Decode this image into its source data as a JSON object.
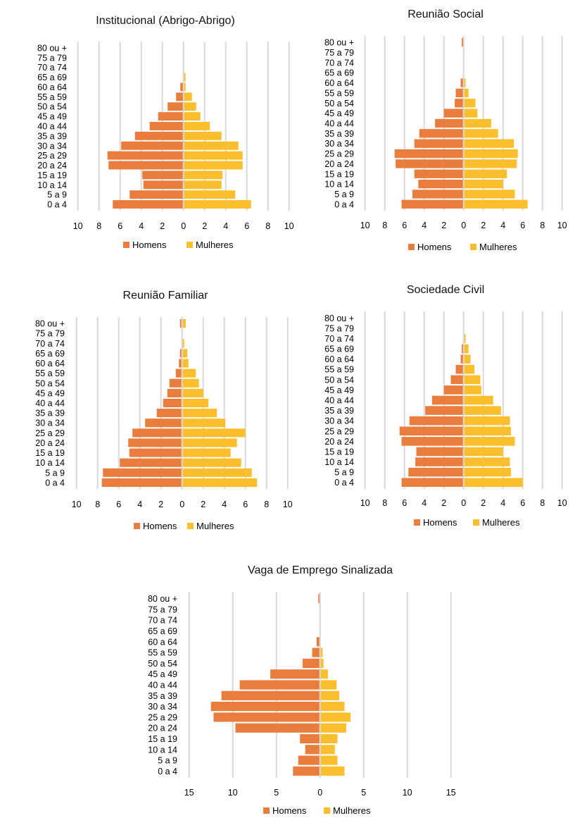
{
  "chart_data": [
    {
      "type": "bar",
      "orientation": "horizontal-population-pyramid",
      "title": "Institucional (Abrigo-Abrigo)",
      "categories": [
        "0 a 4",
        "5 a 9",
        "10 a 14",
        "15 a 19",
        "20 a 24",
        "25 a 29",
        "30 a 34",
        "35 a 39",
        "40 a 44",
        "45 a 49",
        "50 a 54",
        "55 a 59",
        "60 a 64",
        "65 a 69",
        "70 a 74",
        "75 a 79",
        "80 ou +"
      ],
      "series": [
        {
          "name": "Homens",
          "color": "#E97D3D",
          "values": [
            6.7,
            5.1,
            3.8,
            3.9,
            7.1,
            7.2,
            5.9,
            4.6,
            3.2,
            2.4,
            1.5,
            0.7,
            0.3,
            0,
            0,
            0,
            0
          ]
        },
        {
          "name": "Mulheres",
          "color": "#FBBF2D",
          "values": [
            6.4,
            4.9,
            3.6,
            3.7,
            5.6,
            5.6,
            5.2,
            3.6,
            2.5,
            1.6,
            1.2,
            0.8,
            0.2,
            0.2,
            0,
            0,
            0
          ]
        }
      ],
      "xticks": [
        "10",
        "8",
        "6",
        "4",
        "2",
        "0",
        "2",
        "4",
        "6",
        "8",
        "10"
      ],
      "xlim": [
        -10,
        10
      ],
      "grid": true,
      "legend": "bottom"
    },
    {
      "type": "bar",
      "orientation": "horizontal-population-pyramid",
      "title": "Reunião Social",
      "categories": [
        "0 a 4",
        "5 a 9",
        "10 a 14",
        "15 a 19",
        "20 a 24",
        "25 a 29",
        "30 a 34",
        "35 a 39",
        "40 a 44",
        "45 a 49",
        "50 a 54",
        "55 a 59",
        "60 a 64",
        "65 a 69",
        "70 a 74",
        "75 a 79",
        "80 ou +"
      ],
      "series": [
        {
          "name": "Homens",
          "color": "#E97D3D",
          "values": [
            6.3,
            5.2,
            4.6,
            5.0,
            6.9,
            7.0,
            5.0,
            4.5,
            2.9,
            2.0,
            0.9,
            0.8,
            0.3,
            0,
            0,
            0,
            0.2
          ]
        },
        {
          "name": "Mulheres",
          "color": "#FBBF2D",
          "values": [
            6.5,
            5.2,
            4.0,
            4.4,
            5.4,
            5.5,
            5.1,
            3.5,
            2.8,
            1.4,
            1.2,
            0.5,
            0.2,
            0,
            0,
            0,
            0
          ]
        }
      ],
      "xticks": [
        "10",
        "8",
        "6",
        "4",
        "2",
        "0",
        "2",
        "4",
        "6",
        "8",
        "10"
      ],
      "xlim": [
        -10,
        10
      ],
      "grid": true,
      "legend": "bottom"
    },
    {
      "type": "bar",
      "orientation": "horizontal-population-pyramid",
      "title": "Reunião Familiar",
      "categories": [
        "0 a 4",
        "5 a 9",
        "10 a 14",
        "15 a 19",
        "20 a 24",
        "25 a 29",
        "30 a 34",
        "35 a 39",
        "40 a 44",
        "45 a 49",
        "50 a 54",
        "55 a 59",
        "60 a 64",
        "65 a 69",
        "70 a 74",
        "75 a 79",
        "80 ou +"
      ],
      "series": [
        {
          "name": "Homens",
          "color": "#E97D3D",
          "values": [
            7.6,
            7.5,
            5.9,
            5.0,
            5.1,
            4.7,
            3.5,
            2.4,
            1.8,
            1.4,
            1.2,
            0.6,
            0.3,
            0.2,
            0,
            0,
            0.2
          ]
        },
        {
          "name": "Mulheres",
          "color": "#FBBF2D",
          "values": [
            7.1,
            6.6,
            5.6,
            4.6,
            5.2,
            6.0,
            4.1,
            3.3,
            2.5,
            2.0,
            1.6,
            1.3,
            0.6,
            0.5,
            0.2,
            0,
            0.35
          ]
        }
      ],
      "xticks": [
        "10",
        "8",
        "6",
        "4",
        "2",
        "0",
        "2",
        "4",
        "6",
        "8",
        "10"
      ],
      "xlim": [
        -10,
        10
      ],
      "grid": true,
      "legend": "bottom"
    },
    {
      "type": "bar",
      "orientation": "horizontal-population-pyramid",
      "title": "Sociedade Civil",
      "categories": [
        "0 a 4",
        "5 a 9",
        "10 a 14",
        "15 a 19",
        "20 a 24",
        "25 a 29",
        "30 a 34",
        "35 a 39",
        "40 a 44",
        "45 a 49",
        "50 a 54",
        "55 a 59",
        "60 a 64",
        "65 a 69",
        "70 a 74",
        "75 a 79",
        "80 ou +"
      ],
      "series": [
        {
          "name": "Homens",
          "color": "#E97D3D",
          "values": [
            6.3,
            5.6,
            4.9,
            4.8,
            6.3,
            6.5,
            5.5,
            3.9,
            3.2,
            2.0,
            1.3,
            0.8,
            0.3,
            0.2,
            0,
            0,
            0
          ]
        },
        {
          "name": "Mulheres",
          "color": "#FBBF2D",
          "values": [
            6.0,
            4.8,
            4.7,
            4.0,
            5.2,
            4.8,
            4.7,
            3.8,
            3.0,
            1.8,
            1.7,
            1.1,
            0.7,
            0.5,
            0.2,
            0,
            0
          ]
        }
      ],
      "xticks": [
        "10",
        "8",
        "6",
        "4",
        "2",
        "0",
        "2",
        "4",
        "6",
        "8",
        "10"
      ],
      "xlim": [
        -10,
        10
      ],
      "grid": true,
      "legend": "bottom"
    },
    {
      "type": "bar",
      "orientation": "horizontal-population-pyramid",
      "title": "Vaga de Emprego Sinalizada",
      "categories": [
        "0 a 4",
        "5 a 9",
        "10 a 14",
        "15 a 19",
        "20 a 24",
        "25 a 29",
        "30 a 34",
        "35 a 39",
        "40 a 44",
        "45 a 49",
        "50 a 54",
        "55 a 59",
        "60 a 64",
        "65 a 69",
        "70 a 74",
        "75 a 79",
        "80 ou +"
      ],
      "series": [
        {
          "name": "Homens",
          "color": "#E97D3D",
          "values": [
            3.1,
            2.5,
            1.7,
            2.3,
            9.7,
            12.2,
            12.5,
            11.3,
            9.2,
            5.7,
            2.0,
            0.9,
            0.4,
            0,
            0,
            0,
            0.2
          ]
        },
        {
          "name": "Mulheres",
          "color": "#FBBF2D",
          "values": [
            2.8,
            2.0,
            1.7,
            2.0,
            3.0,
            3.5,
            2.8,
            2.2,
            1.9,
            0.9,
            0.4,
            0.3,
            0,
            0,
            0,
            0,
            0
          ]
        }
      ],
      "xticks": [
        "15",
        "10",
        "5",
        "0",
        "5",
        "10",
        "15"
      ],
      "xlim": [
        -15,
        15
      ],
      "grid": true,
      "legend": "bottom"
    }
  ]
}
